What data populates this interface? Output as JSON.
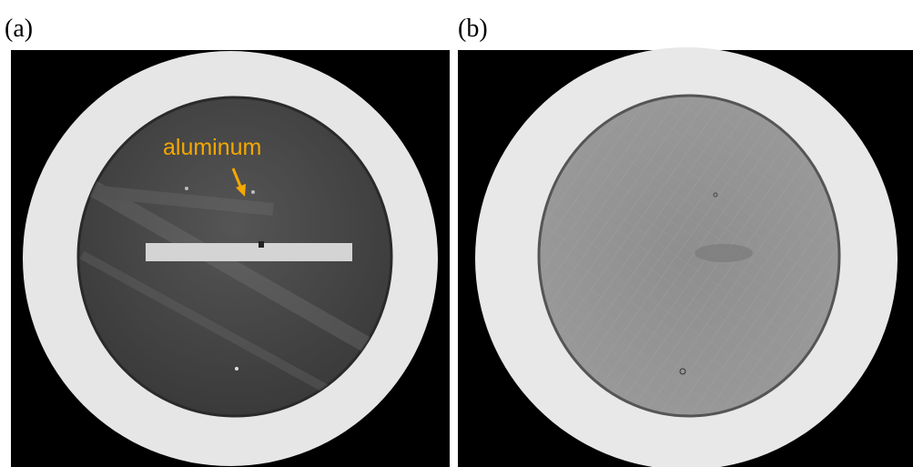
{
  "panels": [
    {
      "label": "(a)",
      "annotation": "aluminum"
    },
    {
      "label": "(b)"
    }
  ]
}
